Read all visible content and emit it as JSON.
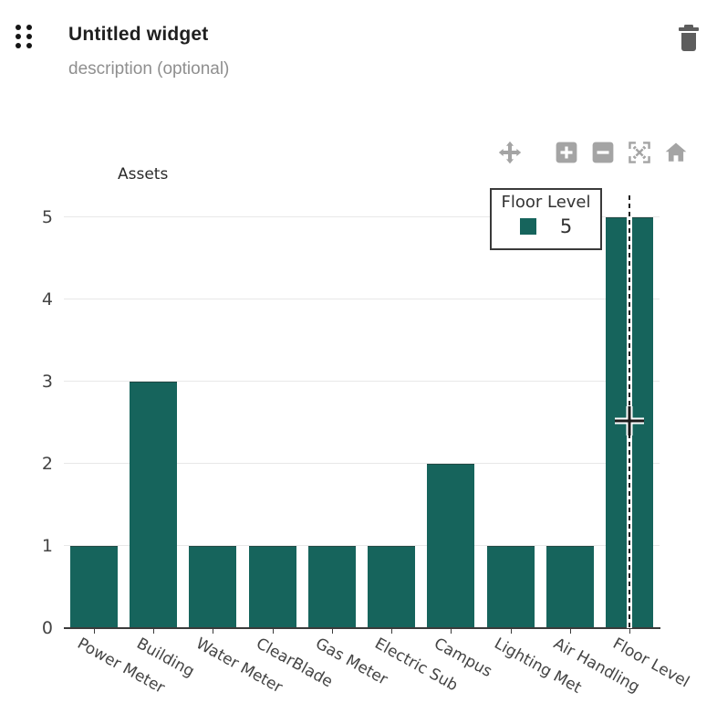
{
  "header": {
    "title": "Untitled widget",
    "description_placeholder": "description (optional)"
  },
  "icons": {
    "drag_handle": "six-dots-grid",
    "delete": "trash-can",
    "modebar": [
      "pan-arrows",
      "zoom-in-square",
      "zoom-out-square",
      "autoscale-expand",
      "home"
    ],
    "cursor": "crosshair-plus"
  },
  "legend": {
    "items": [
      {
        "label": "Assets",
        "color": "#16645C"
      }
    ]
  },
  "tooltip": {
    "title": "Floor Level",
    "value": "5",
    "swatch_color": "#16645C"
  },
  "colors": {
    "bar": "#16645C",
    "axis_text": "#444444",
    "gridline": "#e8e8e8",
    "axis_line": "#3b3b3b",
    "modebar_icon": "#a4a4a4",
    "title_text": "#1f1f1f",
    "subtitle_text": "#8f8f8f",
    "trash_icon": "#5d5d5d",
    "tooltip_border": "#3a3a3a"
  },
  "chart_data": {
    "type": "bar",
    "title": "",
    "series_name": "Assets",
    "categories": [
      "Power Meter",
      "Building",
      "Water Meter",
      "ClearBlade",
      "Gas Meter",
      "Electric Sub",
      "Campus",
      "Lighting Met",
      "Air Handling",
      "Floor Level"
    ],
    "values": [
      1,
      3,
      1,
      1,
      1,
      1,
      2,
      1,
      1,
      5
    ],
    "xlabel": "",
    "ylabel": "",
    "yticks": [
      0,
      1,
      2,
      3,
      4,
      5
    ],
    "ylim": [
      0,
      5.27
    ],
    "grid": true,
    "legend_position": "top-left",
    "bar_color": "#16645C",
    "x_label_rotation_deg": 29,
    "hover": {
      "category": "Floor Level",
      "value": 5,
      "hovered_index": 9
    }
  }
}
